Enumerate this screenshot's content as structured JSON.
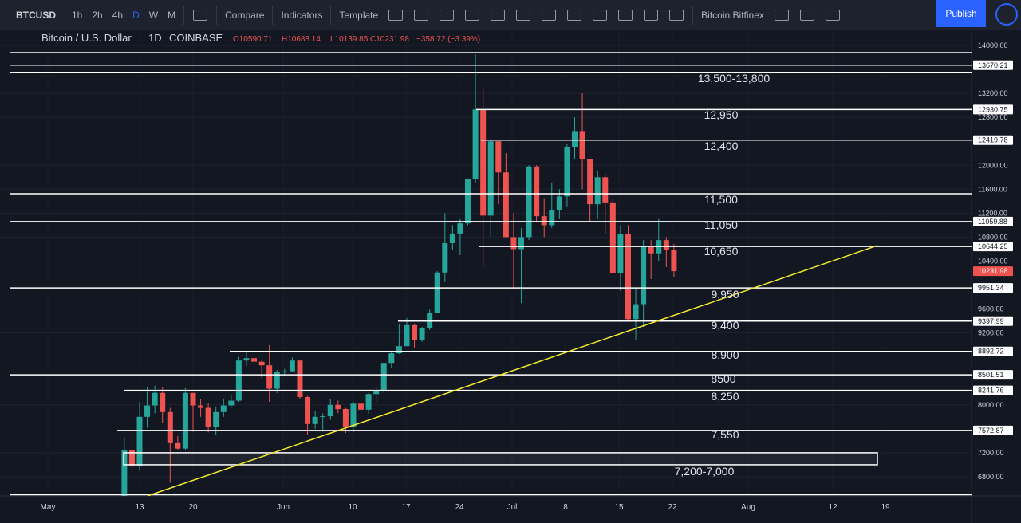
{
  "toolbar": {
    "symbol": "BTCUSD",
    "intervals": [
      "1h",
      "2h",
      "4h",
      "D",
      "W",
      "M"
    ],
    "compare": "Compare",
    "indicators": "Indicators",
    "template": "Template",
    "layout": "Bitcoin Bitfinex",
    "publish": "Publish"
  },
  "legend": {
    "name": "Bitcoin / U.S. Dollar",
    "interval": "1D",
    "exchange": "COINBASE",
    "ohlc": [
      "O10590.71",
      "H10688.14",
      "L10139.85",
      "C10231.98"
    ],
    "change": "−358.72 (−3.39%)"
  },
  "chart_data": {
    "type": "candlestick",
    "categories": [
      "May 11",
      "May 12",
      "May 13",
      "May 14",
      "May 15",
      "May 16",
      "May 17",
      "May 18",
      "May 19",
      "May 20",
      "May 21",
      "May 22",
      "May 23",
      "May 24",
      "May 25",
      "May 26",
      "May 27",
      "May 28",
      "May 29",
      "May 30",
      "May 31",
      "Jun 1",
      "Jun 2",
      "Jun 3",
      "Jun 4",
      "Jun 5",
      "Jun 6",
      "Jun 7",
      "Jun 8",
      "Jun 9",
      "Jun 10",
      "Jun 11",
      "Jun 12",
      "Jun 13",
      "Jun 14",
      "Jun 15",
      "Jun 16",
      "Jun 17",
      "Jun 18",
      "Jun 19",
      "Jun 20",
      "Jun 21",
      "Jun 22",
      "Jun 23",
      "Jun 24",
      "Jun 25",
      "Jun 26",
      "Jun 27",
      "Jun 28",
      "Jun 29",
      "Jun 30",
      "Jul 1",
      "Jul 2",
      "Jul 3",
      "Jul 4",
      "Jul 5",
      "Jul 6",
      "Jul 7",
      "Jul 8",
      "Jul 9",
      "Jul 10",
      "Jul 11",
      "Jul 12",
      "Jul 13",
      "Jul 14",
      "Jul 15",
      "Jul 16",
      "Jul 17",
      "Jul 18",
      "Jul 19",
      "Jul 20",
      "Jul 21",
      "Jul 22"
    ],
    "open": [
      6350,
      7250,
      6980,
      7800,
      7990,
      8200,
      7880,
      7360,
      7270,
      8200,
      7990,
      7950,
      7630,
      7880,
      7990,
      8070,
      8740,
      8780,
      8720,
      8660,
      8270,
      8550,
      8560,
      8740,
      8130,
      7680,
      7800,
      7810,
      8000,
      7930,
      7630,
      8020,
      7920,
      8180,
      8240,
      8700,
      8860,
      8980,
      9330,
      9080,
      9280,
      9530,
      10210,
      10700,
      10860,
      11030,
      11770,
      12930,
      11160,
      12400,
      11880,
      10800,
      10600,
      10800,
      11980,
      11150,
      11000,
      11250,
      11480,
      12300,
      12570,
      12100,
      11350,
      11800,
      11380,
      10200,
      10850,
      9430,
      9680,
      10640,
      10530,
      10750,
      10590.71
    ],
    "high": [
      7450,
      7550,
      8050,
      8300,
      8320,
      8300,
      7950,
      7480,
      8280,
      8200,
      8100,
      8030,
      7960,
      8100,
      8170,
      8800,
      8900,
      8800,
      8750,
      9000,
      8580,
      8600,
      8790,
      8750,
      8150,
      7900,
      7860,
      8100,
      8070,
      7950,
      8050,
      8050,
      8200,
      8300,
      8700,
      8880,
      9350,
      9450,
      9350,
      9300,
      9590,
      10230,
      11200,
      11000,
      11100,
      11780,
      13850,
      13300,
      12450,
      12400,
      12200,
      11200,
      10950,
      12000,
      12000,
      11450,
      11700,
      11600,
      12350,
      12800,
      13200,
      12100,
      11900,
      11850,
      11450,
      11000,
      11000,
      9950,
      10750,
      10750,
      11100,
      10800,
      10688.14
    ],
    "low": [
      6340,
      6900,
      6900,
      7620,
      7860,
      7700,
      6700,
      7240,
      7250,
      7550,
      7800,
      7540,
      7500,
      7800,
      7950,
      8050,
      8650,
      8580,
      8450,
      8050,
      8200,
      8480,
      8550,
      8100,
      7500,
      7600,
      7550,
      7750,
      7860,
      7530,
      7540,
      7700,
      7850,
      8050,
      8200,
      8620,
      8850,
      8980,
      8950,
      9050,
      9250,
      9530,
      10050,
      10580,
      10500,
      11000,
      11700,
      10300,
      10800,
      11350,
      10800,
      9950,
      9700,
      10750,
      11050,
      10800,
      10950,
      11100,
      11300,
      12100,
      11600,
      11050,
      11100,
      10850,
      10200,
      9900,
      9400,
      9080,
      9300,
      10100,
      10400,
      10300,
      10139.85
    ],
    "close": [
      7250,
      6980,
      7800,
      7990,
      8200,
      7880,
      7360,
      7270,
      8200,
      7990,
      7950,
      7630,
      7880,
      7990,
      8070,
      8740,
      8780,
      8720,
      8660,
      8270,
      8550,
      8560,
      8740,
      8130,
      7680,
      7800,
      7810,
      8000,
      7930,
      7630,
      8020,
      7920,
      8180,
      8240,
      8700,
      8860,
      8980,
      9330,
      9080,
      9280,
      9530,
      10210,
      10700,
      10860,
      11030,
      11770,
      12930,
      11160,
      12400,
      11880,
      10800,
      10600,
      10800,
      11980,
      11150,
      11000,
      11250,
      11480,
      12300,
      12570,
      12100,
      11350,
      11800,
      11380,
      10200,
      10850,
      9430,
      9680,
      10640,
      10530,
      10750,
      10590,
      10231.98
    ],
    "up_color": "#26a69a",
    "down_color": "#ef5350",
    "ylim": [
      6480,
      14226
    ],
    "yticks": [
      {
        "value": 14000,
        "label": "14000.00"
      },
      {
        "value": 13200,
        "label": "13200.00"
      },
      {
        "value": 12800,
        "label": "12800.00"
      },
      {
        "value": 12000,
        "label": "12000.00"
      },
      {
        "value": 11600,
        "label": "11600.00"
      },
      {
        "value": 11200,
        "label": "11200.00"
      },
      {
        "value": 10800,
        "label": "10800.00"
      },
      {
        "value": 10400,
        "label": "10400.00"
      },
      {
        "value": 9600,
        "label": "9600.00"
      },
      {
        "value": 9200,
        "label": "9200.00"
      },
      {
        "value": 8000,
        "label": "8000.00"
      },
      {
        "value": 7200,
        "label": "7200.00"
      },
      {
        "value": 6800,
        "label": "6800.00"
      }
    ],
    "xticks": [
      "May",
      "13",
      "20",
      "Jun",
      "10",
      "17",
      "24",
      "Jul",
      "8",
      "15",
      "22",
      "Aug",
      "12",
      "19"
    ],
    "levels": [
      {
        "value": 13670.21,
        "label": "13670.21"
      },
      {
        "value": 12930.75,
        "label": "12930.75"
      },
      {
        "value": 12419.78,
        "label": "12419.78"
      },
      {
        "value": 11059.88,
        "label": "11059.88"
      },
      {
        "value": 10644.25,
        "label": "10644.25"
      },
      {
        "value": 9951.34,
        "label": "9951.34"
      },
      {
        "value": 9397.99,
        "label": "9397.99"
      },
      {
        "value": 8892.72,
        "label": "8892.72"
      },
      {
        "value": 8501.51,
        "label": "8501.51"
      },
      {
        "value": 8241.76,
        "label": "8241.76"
      },
      {
        "value": 7572.87,
        "label": "7572.87"
      }
    ],
    "extra_lines": [
      13880,
      13550,
      11525,
      6500
    ],
    "last_price": {
      "value": 10231.98,
      "label": "10231.98",
      "color": "#ef5350"
    },
    "zone": [
      7200,
      7000
    ],
    "trendline": {
      "values": [
        6480,
        10660
      ],
      "color": "#f5eb2a"
    },
    "annotations": [
      "13,500-13,800",
      "12,950",
      "12,400",
      "11,500",
      "11,050",
      "10,650",
      "9,950",
      "9,400",
      "8,900",
      "8500",
      "8,250",
      "7,550",
      "7,200-7,000"
    ]
  }
}
